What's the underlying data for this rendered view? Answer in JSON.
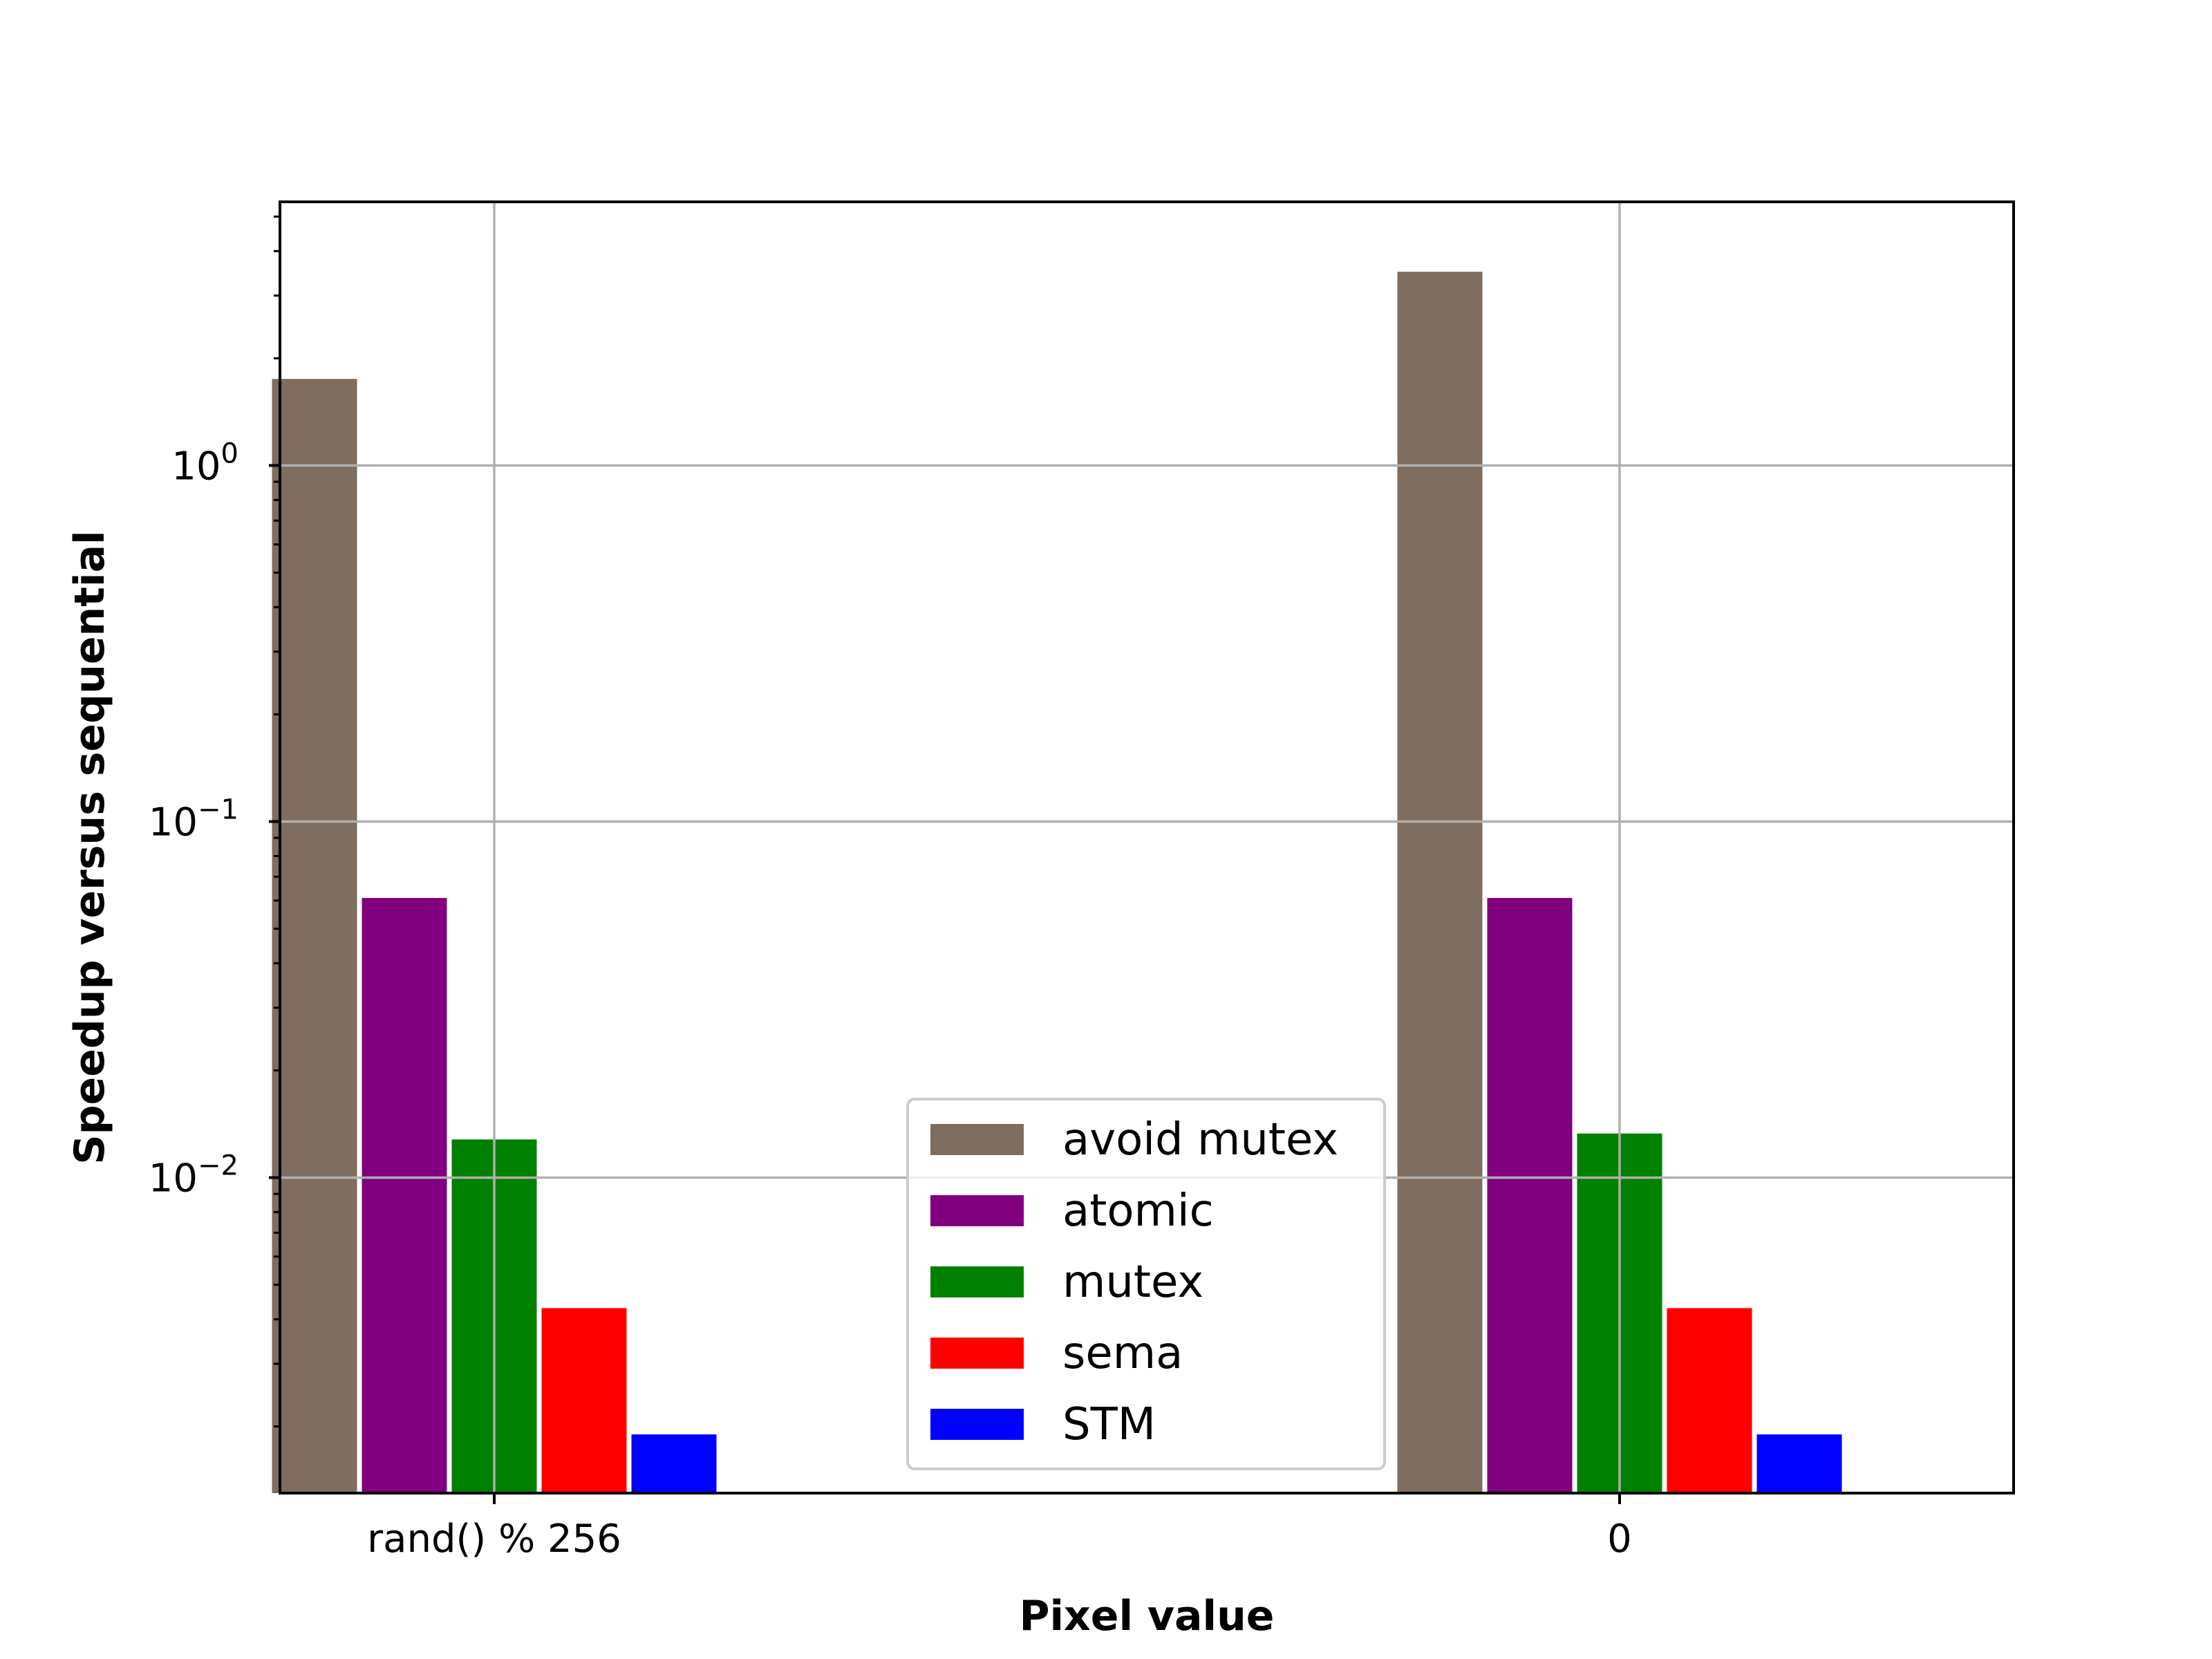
{
  "chart_data": {
    "type": "bar",
    "title": "",
    "xlabel": "Pixel value",
    "ylabel": "Speedup versus sequential",
    "yscale": "log",
    "ylim": [
      0.0013,
      5.5
    ],
    "ytick_labels": [
      {
        "value": 0.01,
        "base": "10",
        "exp": "−2"
      },
      {
        "value": 0.1,
        "base": "10",
        "exp": "−1"
      },
      {
        "value": 1,
        "base": "10",
        "exp": "0"
      }
    ],
    "categories": [
      "rand() % 256",
      "0"
    ],
    "series": [
      {
        "name": "avoid mutex",
        "color": "#7f6d5f",
        "values": [
          1.75,
          3.5
        ]
      },
      {
        "name": "atomic",
        "color": "#800080",
        "values": [
          0.061,
          0.061
        ]
      },
      {
        "name": "mutex",
        "color": "#008000",
        "values": [
          0.0128,
          0.0133
        ]
      },
      {
        "name": "sema",
        "color": "#ff0000",
        "values": [
          0.0043,
          0.0043
        ]
      },
      {
        "name": "STM",
        "color": "#0000ff",
        "values": [
          0.0019,
          0.0019
        ]
      }
    ],
    "grid": true,
    "legend_position": "lower center"
  }
}
